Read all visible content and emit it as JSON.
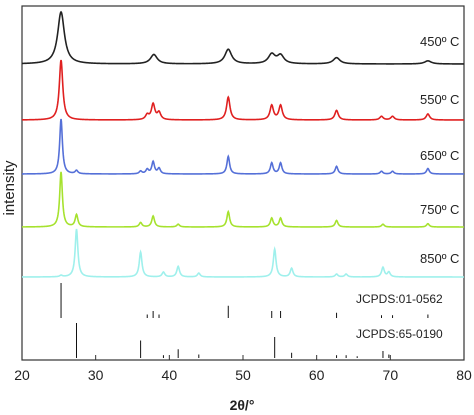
{
  "chart_data": {
    "type": "line",
    "title": "",
    "xlabel": "2θ/°",
    "ylabel": "intensity",
    "xlim": [
      20,
      80
    ],
    "xticks": [
      20,
      30,
      40,
      50,
      60,
      70,
      80
    ],
    "series": [
      {
        "name": "450º C",
        "color": "#222222",
        "baseline": 1.0,
        "peaks": [
          [
            25.3,
            1.0
          ],
          [
            37.9,
            0.18
          ],
          [
            48.0,
            0.28
          ],
          [
            53.9,
            0.18
          ],
          [
            55.1,
            0.16
          ],
          [
            62.7,
            0.12
          ],
          [
            75.1,
            0.06
          ]
        ],
        "width": 0.55
      },
      {
        "name": "550º C",
        "color": "#e02020",
        "baseline": 1.0,
        "peaks": [
          [
            25.3,
            1.0
          ],
          [
            37.0,
            0.08
          ],
          [
            37.8,
            0.26
          ],
          [
            38.6,
            0.12
          ],
          [
            48.0,
            0.38
          ],
          [
            53.9,
            0.24
          ],
          [
            55.1,
            0.24
          ],
          [
            62.7,
            0.16
          ],
          [
            68.8,
            0.06
          ],
          [
            70.3,
            0.06
          ],
          [
            75.1,
            0.1
          ]
        ],
        "width": 0.28
      },
      {
        "name": "650º C",
        "color": "#5570d8",
        "baseline": 1.0,
        "peaks": [
          [
            25.3,
            1.0
          ],
          [
            27.4,
            0.06
          ],
          [
            36.1,
            0.05
          ],
          [
            37.0,
            0.08
          ],
          [
            37.8,
            0.22
          ],
          [
            38.6,
            0.1
          ],
          [
            48.0,
            0.32
          ],
          [
            53.9,
            0.2
          ],
          [
            55.1,
            0.2
          ],
          [
            62.7,
            0.14
          ],
          [
            68.8,
            0.05
          ],
          [
            70.3,
            0.05
          ],
          [
            75.1,
            0.1
          ]
        ],
        "width": 0.22
      },
      {
        "name": "750º C",
        "color": "#a6e22e",
        "baseline": 1.0,
        "peaks": [
          [
            25.3,
            1.0
          ],
          [
            27.4,
            0.22
          ],
          [
            36.1,
            0.08
          ],
          [
            37.8,
            0.2
          ],
          [
            41.2,
            0.05
          ],
          [
            48.0,
            0.28
          ],
          [
            53.9,
            0.16
          ],
          [
            55.1,
            0.16
          ],
          [
            62.7,
            0.12
          ],
          [
            69.0,
            0.05
          ],
          [
            75.1,
            0.06
          ]
        ],
        "width": 0.22
      },
      {
        "name": "850º C",
        "color": "#9ff0ec",
        "baseline": 1.0,
        "peaks": [
          [
            25.3,
            0.03
          ],
          [
            27.4,
            1.0
          ],
          [
            36.1,
            0.52
          ],
          [
            39.2,
            0.1
          ],
          [
            41.2,
            0.22
          ],
          [
            44.0,
            0.08
          ],
          [
            54.3,
            0.58
          ],
          [
            56.6,
            0.18
          ],
          [
            62.7,
            0.06
          ],
          [
            64.0,
            0.06
          ],
          [
            69.0,
            0.2
          ],
          [
            69.8,
            0.1
          ]
        ],
        "width": 0.22
      }
    ],
    "references": [
      {
        "name": "JCPDS:01-0562",
        "lines": [
          [
            25.3,
            1.0
          ],
          [
            37.0,
            0.1
          ],
          [
            37.8,
            0.2
          ],
          [
            38.6,
            0.1
          ],
          [
            48.0,
            0.35
          ],
          [
            53.9,
            0.2
          ],
          [
            55.1,
            0.2
          ],
          [
            62.7,
            0.15
          ],
          [
            68.8,
            0.08
          ],
          [
            70.3,
            0.08
          ],
          [
            75.1,
            0.1
          ]
        ]
      },
      {
        "name": "JCPDS:65-0190",
        "lines": [
          [
            27.4,
            1.0
          ],
          [
            36.1,
            0.5
          ],
          [
            39.2,
            0.08
          ],
          [
            41.2,
            0.25
          ],
          [
            44.0,
            0.1
          ],
          [
            54.3,
            0.6
          ],
          [
            56.6,
            0.15
          ],
          [
            62.7,
            0.08
          ],
          [
            64.0,
            0.08
          ],
          [
            65.5,
            0.05
          ],
          [
            69.0,
            0.2
          ],
          [
            69.8,
            0.1
          ]
        ]
      }
    ],
    "legend": "inline-right"
  }
}
